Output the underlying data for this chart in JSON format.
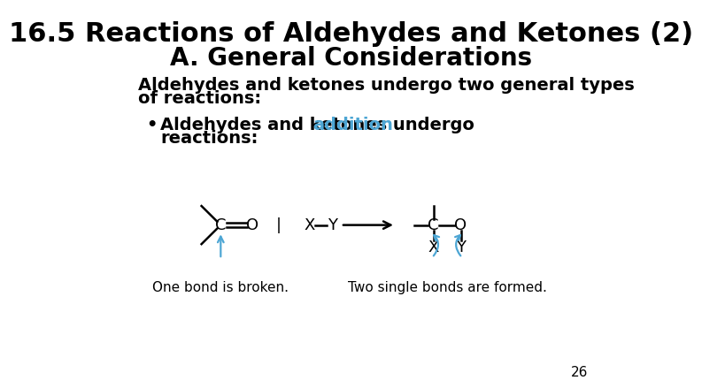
{
  "title_line1": "16.5 Reactions of Aldehydes and Ketones (2)",
  "title_line2": "A. General Considerations",
  "body_text1": "Aldehydes and ketones undergo two general types",
  "body_text2": "of reactions:",
  "bullet_black1": "Aldehydes and ketones undergo ",
  "bullet_cyan": "addition",
  "bullet_black2": "reactions:",
  "label_left": "One bond is broken.",
  "label_right": "Two single bonds are formed.",
  "page_number": "26",
  "bg_color": "#ffffff",
  "title_color": "#000000",
  "body_color": "#000000",
  "cyan_color": "#4da6d4",
  "diagram_color": "#000000",
  "title1_fontsize": 22,
  "title2_fontsize": 20,
  "body_fontsize": 14,
  "bullet_fontsize": 14,
  "diag_fontsize": 13,
  "label_fontsize": 11,
  "page_fontsize": 11
}
